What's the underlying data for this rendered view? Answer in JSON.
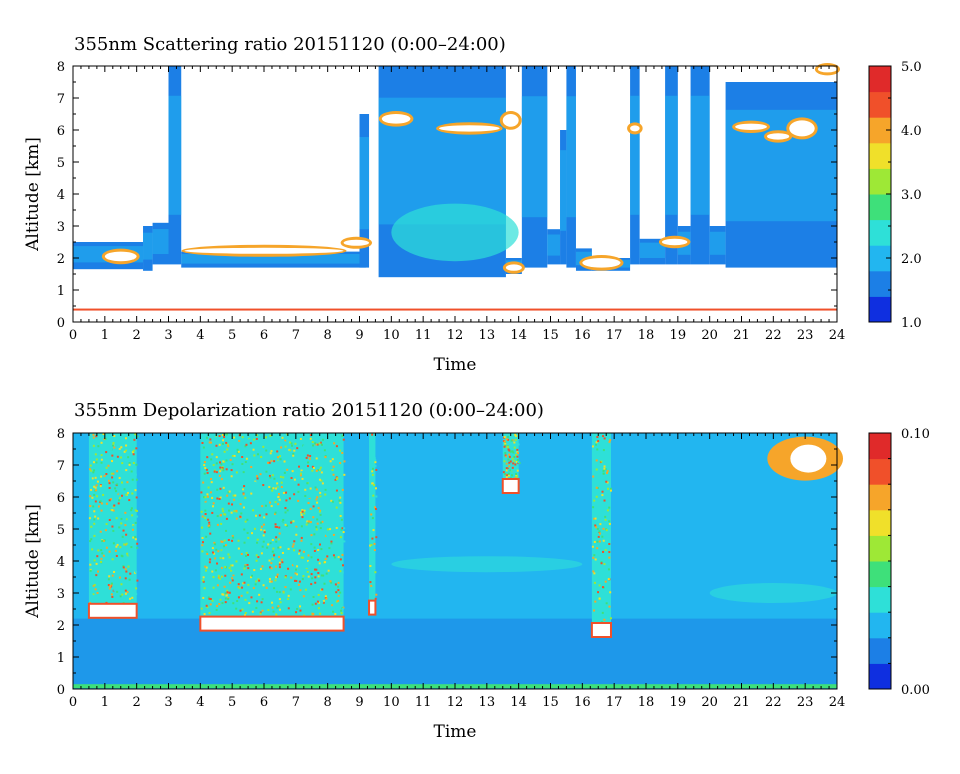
{
  "chart_data": [
    {
      "type": "heatmap",
      "title": "355nm Scattering ratio  20151120 (0:00–24:00)",
      "xlabel": "Time",
      "ylabel": "Altitude [km]",
      "xlim": [
        0,
        24
      ],
      "ylim": [
        0,
        8
      ],
      "x_ticks": [
        "0",
        "1",
        "2",
        "3",
        "4",
        "5",
        "6",
        "7",
        "8",
        "9",
        "10",
        "11",
        "12",
        "13",
        "14",
        "15",
        "16",
        "17",
        "18",
        "19",
        "20",
        "21",
        "22",
        "23",
        "24"
      ],
      "y_ticks": [
        "0",
        "1",
        "2",
        "3",
        "4",
        "5",
        "6",
        "7",
        "8"
      ],
      "colorbar": {
        "min": 1.0,
        "max": 5.0,
        "tick_labels": [
          "1.0",
          "2.0",
          "3.0",
          "4.0",
          "5.0"
        ]
      },
      "colormap": [
        "#0f2fe0",
        "#1c7fe6",
        "#22b6f0",
        "#2ee0d8",
        "#3ee07a",
        "#9ee836",
        "#f0e02a",
        "#f6a52a",
        "#f0502a",
        "#e02a2a"
      ],
      "features": {
        "near_ground_layer_km": 0.4,
        "cloud_top_layer_km": 6.0
      }
    },
    {
      "type": "heatmap",
      "title": "355nm Depolarization ratio  20151120 (0:00–24:00)",
      "xlabel": "Time",
      "ylabel": "Altitude [km]",
      "xlim": [
        0,
        24
      ],
      "ylim": [
        0,
        8
      ],
      "x_ticks": [
        "0",
        "1",
        "2",
        "3",
        "4",
        "5",
        "6",
        "7",
        "8",
        "9",
        "10",
        "11",
        "12",
        "13",
        "14",
        "15",
        "16",
        "17",
        "18",
        "19",
        "20",
        "21",
        "22",
        "23",
        "24"
      ],
      "y_ticks": [
        "0",
        "1",
        "2",
        "3",
        "4",
        "5",
        "6",
        "7",
        "8"
      ],
      "colorbar": {
        "min": 0.0,
        "max": 0.1,
        "tick_labels": [
          "0.00",
          "0.10"
        ]
      },
      "colormap": [
        "#0f2fe0",
        "#1c7fe6",
        "#22b6f0",
        "#2ee0d8",
        "#3ee07a",
        "#9ee836",
        "#f0e02a",
        "#f6a52a",
        "#f0502a",
        "#e02a2a"
      ],
      "features": {
        "background_value": 0.02,
        "high_depol_columns_hours": [
          [
            0.5,
            2.0
          ],
          [
            4.0,
            8.5
          ],
          [
            13.5,
            14.0
          ],
          [
            16.3,
            16.9
          ]
        ]
      }
    }
  ]
}
